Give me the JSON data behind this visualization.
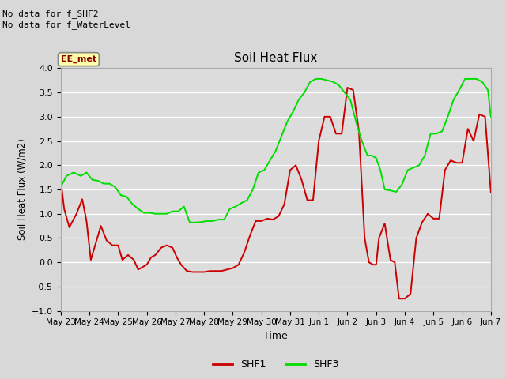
{
  "title": "Soil Heat Flux",
  "ylabel": "Soil Heat Flux (W/m2)",
  "xlabel": "Time",
  "note_line1": "No data for f_SHF2",
  "note_line2": "No data for f_WaterLevel",
  "box_label": "EE_met",
  "ylim": [
    -1.0,
    4.0
  ],
  "yticks": [
    -1.0,
    -0.5,
    0.0,
    0.5,
    1.0,
    1.5,
    2.0,
    2.5,
    3.0,
    3.5,
    4.0
  ],
  "xtick_labels": [
    "May 23",
    "May 24",
    "May 25",
    "May 26",
    "May 27",
    "May 28",
    "May 29",
    "May 30",
    "May 31",
    "Jun 1",
    "Jun 2",
    "Jun 3",
    "Jun 4",
    "Jun 5",
    "Jun 6",
    "Jun 7"
  ],
  "fig_bg_color": "#d8d8d8",
  "plot_bg_color": "#dcdcdc",
  "grid_color": "#ffffff",
  "shf1_color": "#cc0000",
  "shf3_color": "#00dd00",
  "shf1_x": [
    0,
    0.12,
    0.3,
    0.55,
    0.75,
    0.9,
    1.05,
    1.2,
    1.4,
    1.6,
    1.8,
    2.0,
    2.15,
    2.35,
    2.55,
    2.7,
    2.85,
    3.0,
    3.15,
    3.3,
    3.5,
    3.7,
    3.9,
    4.05,
    4.2,
    4.4,
    4.6,
    4.8,
    5.0,
    5.2,
    5.4,
    5.6,
    5.8,
    6.0,
    6.2,
    6.4,
    6.6,
    6.8,
    7.0,
    7.2,
    7.4,
    7.6,
    7.8,
    8.0,
    8.2,
    8.4,
    8.6,
    8.8,
    9.0,
    9.2,
    9.4,
    9.6,
    9.8,
    10.0,
    10.2,
    10.4,
    10.6,
    10.75,
    10.9,
    11.0,
    11.1,
    11.3,
    11.5,
    11.65,
    11.8,
    12.0,
    12.2,
    12.4,
    12.6,
    12.8,
    13.0,
    13.2,
    13.4,
    13.6,
    13.8,
    14.0,
    14.2,
    14.4,
    14.6,
    14.8,
    15.0
  ],
  "shf1_y": [
    1.7,
    1.1,
    0.72,
    1.0,
    1.3,
    0.85,
    0.05,
    0.35,
    0.75,
    0.45,
    0.35,
    0.35,
    0.05,
    0.15,
    0.05,
    -0.15,
    -0.1,
    -0.05,
    0.1,
    0.15,
    0.3,
    0.35,
    0.3,
    0.1,
    -0.05,
    -0.18,
    -0.2,
    -0.2,
    -0.2,
    -0.18,
    -0.18,
    -0.18,
    -0.15,
    -0.12,
    -0.05,
    0.2,
    0.55,
    0.85,
    0.85,
    0.9,
    0.88,
    0.95,
    1.2,
    1.9,
    2.0,
    1.7,
    1.28,
    1.28,
    2.5,
    3.0,
    3.0,
    2.65,
    2.65,
    3.6,
    3.55,
    2.7,
    0.5,
    0.0,
    -0.05,
    -0.05,
    0.5,
    0.8,
    0.05,
    0.0,
    -0.75,
    -0.75,
    -0.65,
    0.5,
    0.82,
    1.0,
    0.9,
    0.9,
    1.9,
    2.1,
    2.05,
    2.05,
    2.75,
    2.5,
    3.05,
    3.0,
    1.45
  ],
  "shf3_x": [
    0,
    0.2,
    0.45,
    0.7,
    0.9,
    1.1,
    1.3,
    1.5,
    1.7,
    1.9,
    2.1,
    2.3,
    2.5,
    2.7,
    2.9,
    3.1,
    3.3,
    3.5,
    3.7,
    3.9,
    4.1,
    4.3,
    4.5,
    4.7,
    4.9,
    5.1,
    5.3,
    5.5,
    5.7,
    5.9,
    6.1,
    6.3,
    6.5,
    6.7,
    6.9,
    7.1,
    7.3,
    7.5,
    7.7,
    7.9,
    8.1,
    8.3,
    8.5,
    8.7,
    8.9,
    9.1,
    9.3,
    9.5,
    9.7,
    9.9,
    10.1,
    10.3,
    10.5,
    10.7,
    10.85,
    11.0,
    11.15,
    11.3,
    11.5,
    11.7,
    11.9,
    12.1,
    12.3,
    12.5,
    12.7,
    12.9,
    13.1,
    13.3,
    13.5,
    13.7,
    13.9,
    14.1,
    14.3,
    14.5,
    14.7,
    14.9,
    15.0
  ],
  "shf3_y": [
    1.55,
    1.78,
    1.85,
    1.78,
    1.85,
    1.7,
    1.68,
    1.62,
    1.62,
    1.55,
    1.38,
    1.35,
    1.2,
    1.1,
    1.02,
    1.02,
    1.0,
    1.0,
    1.0,
    1.05,
    1.05,
    1.15,
    0.82,
    0.82,
    0.83,
    0.85,
    0.85,
    0.88,
    0.88,
    1.1,
    1.15,
    1.22,
    1.28,
    1.5,
    1.85,
    1.9,
    2.1,
    2.3,
    2.6,
    2.9,
    3.1,
    3.35,
    3.5,
    3.72,
    3.78,
    3.78,
    3.75,
    3.72,
    3.65,
    3.5,
    3.35,
    2.9,
    2.5,
    2.2,
    2.2,
    2.15,
    1.9,
    1.5,
    1.48,
    1.45,
    1.6,
    1.9,
    1.95,
    2.0,
    2.2,
    2.65,
    2.65,
    2.7,
    3.0,
    3.35,
    3.55,
    3.78,
    3.78,
    3.78,
    3.72,
    3.55,
    3.0
  ]
}
